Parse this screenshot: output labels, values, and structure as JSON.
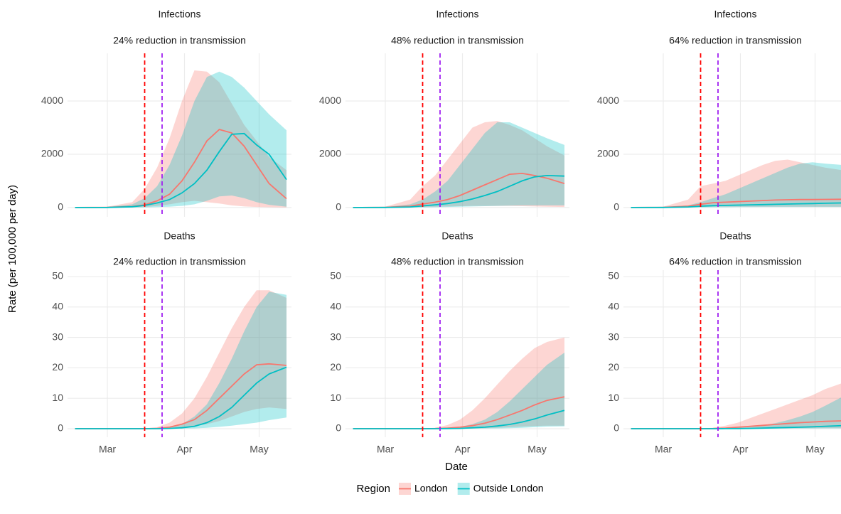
{
  "figure": {
    "x_label": "Date",
    "y_label": "Rate (per 100,000 per day)",
    "legend_title": "Region"
  },
  "chart_data": [
    {
      "type": "ribbon-line",
      "title": "Infections",
      "subtitle": "24% reduction in transmission",
      "x": [
        -13,
        0,
        10,
        15,
        20,
        25,
        30,
        35,
        40,
        45,
        50,
        55,
        60,
        65,
        72
      ],
      "xlim": [
        -16,
        74
      ],
      "xticks": [
        {
          "value": 0,
          "label": "Mar"
        },
        {
          "value": 31,
          "label": "Apr"
        },
        {
          "value": 61,
          "label": "May"
        }
      ],
      "ylim": [
        -350,
        5790
      ],
      "yticks": [
        0,
        2000,
        4000
      ],
      "grid": true,
      "vlines": [
        {
          "value": 15,
          "color": "#ff0000"
        },
        {
          "value": 22,
          "color": "#a020f0"
        }
      ],
      "series": [
        {
          "name": "London",
          "color": "#F8766D",
          "values": [
            0,
            5,
            40,
            100,
            250,
            500,
            1000,
            1700,
            2500,
            2930,
            2800,
            2300,
            1600,
            900,
            330
          ],
          "lower": [
            0,
            0,
            5,
            20,
            60,
            120,
            200,
            250,
            200,
            150,
            80,
            40,
            20,
            10,
            0
          ],
          "upper": [
            0,
            30,
            200,
            700,
            1500,
            2600,
            4000,
            5150,
            5100,
            4700,
            3900,
            3100,
            2500,
            1900,
            1400
          ]
        },
        {
          "name": "Outside London",
          "color": "#00BFC4",
          "values": [
            0,
            3,
            30,
            80,
            170,
            300,
            550,
            900,
            1400,
            2100,
            2750,
            2780,
            2350,
            2000,
            1050
          ],
          "lower": [
            0,
            0,
            0,
            5,
            15,
            30,
            60,
            120,
            250,
            420,
            450,
            350,
            200,
            100,
            30
          ],
          "upper": [
            0,
            20,
            120,
            350,
            800,
            1600,
            2700,
            4000,
            4900,
            5100,
            4900,
            4500,
            4000,
            3500,
            2900
          ]
        }
      ]
    },
    {
      "type": "ribbon-line",
      "title": "Infections",
      "subtitle": "48% reduction in transmission",
      "x": [
        -13,
        0,
        10,
        15,
        20,
        25,
        30,
        35,
        40,
        45,
        50,
        55,
        60,
        65,
        72
      ],
      "xlim": [
        -16,
        74
      ],
      "xticks": [
        {
          "value": 0,
          "label": "Mar"
        },
        {
          "value": 31,
          "label": "Apr"
        },
        {
          "value": 61,
          "label": "May"
        }
      ],
      "ylim": [
        -350,
        5790
      ],
      "yticks": [
        0,
        2000,
        4000
      ],
      "grid": true,
      "vlines": [
        {
          "value": 15,
          "color": "#ff0000"
        },
        {
          "value": 22,
          "color": "#a020f0"
        }
      ],
      "series": [
        {
          "name": "London",
          "color": "#F8766D",
          "values": [
            0,
            5,
            50,
            130,
            200,
            300,
            450,
            650,
            850,
            1050,
            1250,
            1280,
            1200,
            1100,
            900
          ],
          "lower": [
            0,
            0,
            5,
            20,
            30,
            40,
            50,
            60,
            60,
            60,
            60,
            50,
            40,
            30,
            20
          ],
          "upper": [
            0,
            30,
            300,
            800,
            1200,
            1800,
            2400,
            3000,
            3200,
            3250,
            3100,
            2900,
            2600,
            2300,
            1950
          ]
        },
        {
          "name": "Outside London",
          "color": "#00BFC4",
          "values": [
            0,
            2,
            20,
            60,
            100,
            150,
            220,
            320,
            450,
            600,
            800,
            1000,
            1150,
            1200,
            1180
          ],
          "lower": [
            0,
            0,
            0,
            5,
            10,
            20,
            30,
            40,
            50,
            60,
            70,
            80,
            80,
            80,
            80
          ],
          "upper": [
            0,
            15,
            120,
            300,
            600,
            1000,
            1600,
            2200,
            2800,
            3200,
            3200,
            3000,
            2800,
            2600,
            2350
          ]
        }
      ]
    },
    {
      "type": "ribbon-line",
      "title": "Infections",
      "subtitle": "64% reduction in transmission",
      "x": [
        -13,
        0,
        10,
        15,
        20,
        25,
        30,
        35,
        40,
        45,
        50,
        55,
        60,
        65,
        72
      ],
      "xlim": [
        -16,
        74
      ],
      "xticks": [
        {
          "value": 0,
          "label": "Mar"
        },
        {
          "value": 31,
          "label": "Apr"
        },
        {
          "value": 61,
          "label": "May"
        }
      ],
      "ylim": [
        -350,
        5790
      ],
      "yticks": [
        0,
        2000,
        4000
      ],
      "grid": true,
      "vlines": [
        {
          "value": 15,
          "color": "#ff0000"
        },
        {
          "value": 22,
          "color": "#a020f0"
        }
      ],
      "series": [
        {
          "name": "London",
          "color": "#F8766D",
          "values": [
            0,
            5,
            50,
            120,
            180,
            200,
            220,
            240,
            260,
            280,
            290,
            300,
            300,
            305,
            310
          ],
          "lower": [
            0,
            0,
            5,
            20,
            30,
            30,
            30,
            30,
            30,
            30,
            30,
            30,
            30,
            30,
            30
          ],
          "upper": [
            0,
            30,
            300,
            800,
            900,
            1000,
            1200,
            1400,
            1600,
            1750,
            1800,
            1700,
            1600,
            1500,
            1400
          ]
        },
        {
          "name": "Outside London",
          "color": "#00BFC4",
          "values": [
            0,
            2,
            20,
            50,
            70,
            80,
            90,
            100,
            110,
            120,
            130,
            140,
            150,
            160,
            170
          ],
          "lower": [
            0,
            0,
            0,
            5,
            10,
            10,
            15,
            15,
            20,
            20,
            20,
            20,
            20,
            20,
            20
          ],
          "upper": [
            0,
            10,
            80,
            200,
            350,
            500,
            700,
            900,
            1100,
            1300,
            1500,
            1650,
            1700,
            1650,
            1600
          ]
        }
      ]
    },
    {
      "type": "ribbon-line",
      "title": "Deaths",
      "subtitle": "24% reduction in transmission",
      "x": [
        -13,
        0,
        10,
        15,
        20,
        25,
        30,
        35,
        40,
        45,
        50,
        55,
        60,
        65,
        72
      ],
      "xlim": [
        -16,
        74
      ],
      "xticks": [
        {
          "value": 0,
          "label": "Mar"
        },
        {
          "value": 31,
          "label": "Apr"
        },
        {
          "value": 61,
          "label": "May"
        }
      ],
      "ylim": [
        -2.8,
        52.1
      ],
      "yticks": [
        0,
        10,
        20,
        30,
        40,
        50
      ],
      "grid": true,
      "vlines": [
        {
          "value": 15,
          "color": "#ff0000"
        },
        {
          "value": 22,
          "color": "#a020f0"
        }
      ],
      "series": [
        {
          "name": "London",
          "color": "#F8766D",
          "values": [
            0,
            0,
            0,
            0,
            0.1,
            0.5,
            1.5,
            3,
            6,
            10,
            14,
            18,
            21,
            21.3,
            20.8
          ],
          "lower": [
            0,
            0,
            0,
            0,
            0,
            0.1,
            0.3,
            0.8,
            1.5,
            2.5,
            4,
            5.5,
            6.5,
            7,
            6.5
          ],
          "upper": [
            0,
            0,
            0,
            0.1,
            0.5,
            2,
            5,
            10,
            17,
            25,
            33,
            40,
            45.5,
            45.5,
            43
          ]
        },
        {
          "name": "Outside London",
          "color": "#00BFC4",
          "values": [
            0,
            0,
            0,
            0,
            0,
            0.1,
            0.3,
            0.8,
            2,
            4,
            7,
            11,
            15,
            18,
            20.2
          ],
          "lower": [
            0,
            0,
            0,
            0,
            0,
            0,
            0.05,
            0.1,
            0.3,
            0.6,
            1,
            1.5,
            2,
            2.8,
            3.7
          ],
          "upper": [
            0,
            0,
            0,
            0,
            0.1,
            0.4,
            1.5,
            4,
            8,
            15,
            23,
            32,
            40,
            45,
            44
          ]
        }
      ]
    },
    {
      "type": "ribbon-line",
      "title": "Deaths",
      "subtitle": "48% reduction in transmission",
      "x": [
        -13,
        0,
        10,
        15,
        20,
        25,
        30,
        35,
        40,
        45,
        50,
        55,
        60,
        65,
        72
      ],
      "xlim": [
        -16,
        74
      ],
      "xticks": [
        {
          "value": 0,
          "label": "Mar"
        },
        {
          "value": 31,
          "label": "Apr"
        },
        {
          "value": 61,
          "label": "May"
        }
      ],
      "ylim": [
        -2.8,
        52.1
      ],
      "yticks": [
        0,
        10,
        20,
        30,
        40,
        50
      ],
      "grid": true,
      "vlines": [
        {
          "value": 15,
          "color": "#ff0000"
        },
        {
          "value": 22,
          "color": "#a020f0"
        }
      ],
      "series": [
        {
          "name": "London",
          "color": "#F8766D",
          "values": [
            0,
            0,
            0,
            0,
            0.05,
            0.2,
            0.5,
            1,
            1.8,
            3,
            4.5,
            6,
            7.8,
            9.3,
            10.5
          ],
          "lower": [
            0,
            0,
            0,
            0,
            0,
            0,
            0.05,
            0.1,
            0.2,
            0.3,
            0.5,
            0.7,
            0.9,
            1,
            1
          ],
          "upper": [
            0,
            0,
            0,
            0.05,
            0.3,
            1.2,
            3,
            6,
            10,
            14.5,
            19,
            23,
            26.5,
            28.5,
            30
          ]
        },
        {
          "name": "Outside London",
          "color": "#00BFC4",
          "values": [
            0,
            0,
            0,
            0,
            0,
            0.05,
            0.1,
            0.3,
            0.5,
            0.9,
            1.4,
            2.2,
            3.2,
            4.5,
            6
          ],
          "lower": [
            0,
            0,
            0,
            0,
            0,
            0,
            0,
            0.02,
            0.05,
            0.1,
            0.2,
            0.3,
            0.5,
            0.7,
            0.8
          ],
          "upper": [
            0,
            0,
            0,
            0,
            0.05,
            0.2,
            0.6,
            1.5,
            3,
            5.5,
            9,
            13,
            17,
            21,
            25
          ]
        }
      ]
    },
    {
      "type": "ribbon-line",
      "title": "Deaths",
      "subtitle": "64% reduction in transmission",
      "x": [
        -13,
        0,
        10,
        15,
        20,
        25,
        30,
        35,
        40,
        45,
        50,
        55,
        60,
        65,
        72
      ],
      "xlim": [
        -16,
        74
      ],
      "xticks": [
        {
          "value": 0,
          "label": "Mar"
        },
        {
          "value": 31,
          "label": "Apr"
        },
        {
          "value": 61,
          "label": "May"
        }
      ],
      "ylim": [
        -2.8,
        52.1
      ],
      "yticks": [
        0,
        10,
        20,
        30,
        40,
        50
      ],
      "grid": true,
      "vlines": [
        {
          "value": 15,
          "color": "#ff0000"
        },
        {
          "value": 22,
          "color": "#a020f0"
        }
      ],
      "series": [
        {
          "name": "London",
          "color": "#F8766D",
          "values": [
            0,
            0,
            0,
            0,
            0.05,
            0.2,
            0.5,
            0.8,
            1.1,
            1.4,
            1.7,
            2,
            2.2,
            2.4,
            2.6
          ],
          "lower": [
            0,
            0,
            0,
            0,
            0,
            0,
            0.02,
            0.05,
            0.1,
            0.1,
            0.15,
            0.2,
            0.2,
            0.2,
            0.2
          ],
          "upper": [
            0,
            0,
            0,
            0.05,
            0.3,
            1,
            2,
            3.5,
            5,
            6.5,
            8,
            9.5,
            11,
            13,
            15
          ]
        },
        {
          "name": "Outside London",
          "color": "#00BFC4",
          "values": [
            0,
            0,
            0,
            0,
            0,
            0.02,
            0.05,
            0.1,
            0.2,
            0.3,
            0.4,
            0.5,
            0.6,
            0.8,
            1
          ],
          "lower": [
            0,
            0,
            0,
            0,
            0,
            0,
            0,
            0,
            0.02,
            0.03,
            0.05,
            0.05,
            0.08,
            0.1,
            0.1
          ],
          "upper": [
            0,
            0,
            0,
            0,
            0.03,
            0.1,
            0.3,
            0.6,
            1.1,
            1.8,
            2.8,
            4,
            5.5,
            7.5,
            10.5
          ]
        }
      ]
    }
  ]
}
